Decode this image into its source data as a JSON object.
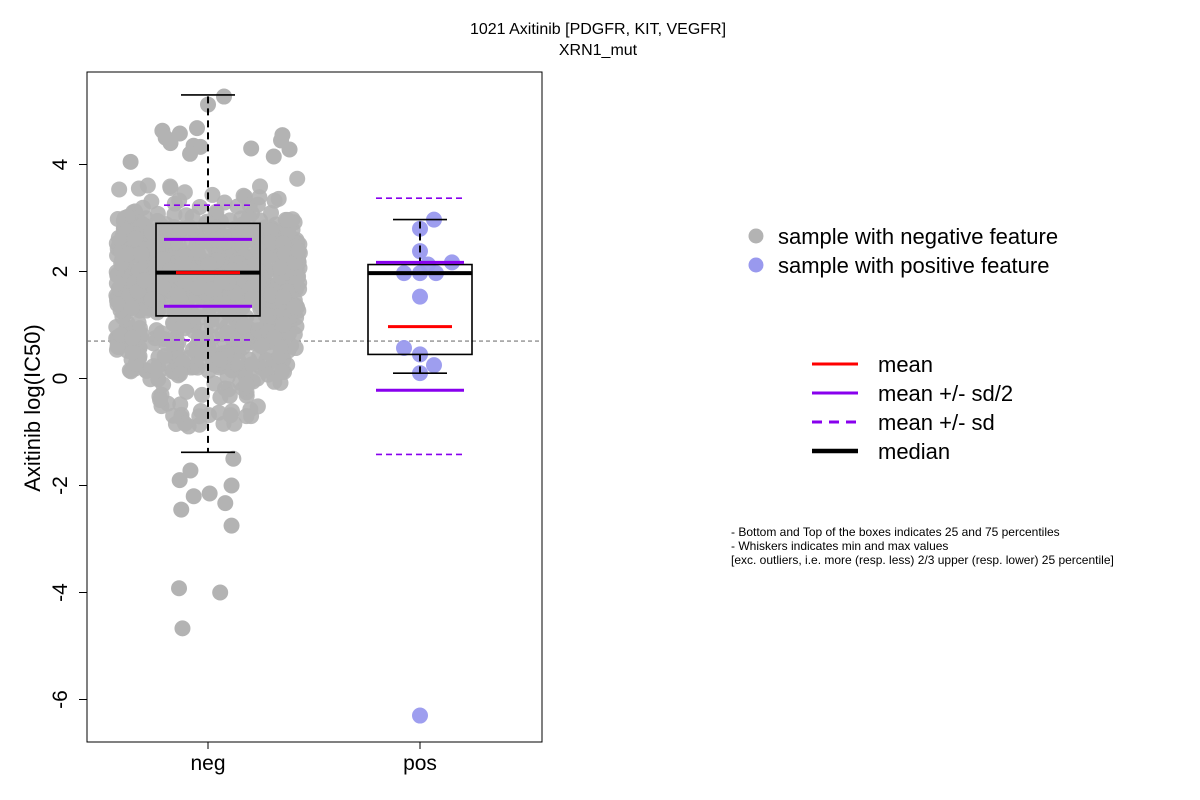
{
  "chart_data": {
    "type": "boxplot",
    "title": "1021 Axitinib [PDGFR, KIT, VEGFR]",
    "subtitle": "XRN1_mut",
    "ylabel": "Axitinib log(IC50)",
    "xlabel": "",
    "ylim": [
      -6.8,
      5.7
    ],
    "yticks": [
      -6,
      -4,
      -2,
      0,
      2,
      4
    ],
    "reference_line": 0.7,
    "categories": [
      "neg",
      "pos"
    ],
    "groups": [
      {
        "name": "neg",
        "color": "#b3b3b3",
        "n_points": 900,
        "whisker_low": -1.38,
        "q1": 1.17,
        "median": 1.98,
        "q3": 2.9,
        "whisker_high": 5.3,
        "mean": 1.98,
        "mean_minus_half_sd": 1.35,
        "mean_plus_half_sd": 2.6,
        "mean_minus_sd": 0.72,
        "mean_plus_sd": 3.24,
        "outliers": [
          -1.5,
          -1.72,
          -1.9,
          -2.0,
          -2.15,
          -2.2,
          -2.33,
          -2.45,
          -2.75,
          -3.92,
          -4.0,
          -4.67
        ],
        "top_points": [
          5.27,
          5.12,
          4.68,
          4.63,
          4.58,
          4.55,
          4.5,
          4.45,
          4.4,
          4.35,
          4.33,
          4.3,
          4.28,
          4.2,
          4.15,
          4.05
        ]
      },
      {
        "name": "pos",
        "color": "#9999ee",
        "whisker_low": 0.1,
        "q1": 0.45,
        "median": 1.97,
        "q3": 2.13,
        "whisker_high": 2.97,
        "mean": 0.97,
        "mean_minus_half_sd": -0.22,
        "mean_plus_half_sd": 2.17,
        "mean_minus_sd": -1.42,
        "mean_plus_sd": 3.37,
        "points": [
          2.97,
          2.8,
          2.38,
          2.17,
          2.13,
          1.97,
          1.97,
          1.97,
          1.53,
          0.57,
          0.45,
          0.25,
          0.1,
          -6.3
        ]
      }
    ],
    "legend_points": [
      {
        "label": "sample with negative feature",
        "color": "#b3b3b3"
      },
      {
        "label": "sample with positive feature",
        "color": "#9999ee"
      }
    ],
    "legend_lines": [
      {
        "label": "mean",
        "color": "#ff0000",
        "style": "solid"
      },
      {
        "label": "mean +/- sd/2",
        "color": "#8800ee",
        "style": "solid"
      },
      {
        "label": "mean +/- sd",
        "color": "#8800ee",
        "style": "dashed"
      },
      {
        "label": "median",
        "color": "#000000",
        "style": "thick"
      }
    ],
    "notes": [
      "- Bottom and Top of the boxes indicates 25 and 75 percentiles",
      "- Whiskers indicates min and max values",
      "[exc. outliers, i.e. more (resp. less) 2/3 upper (resp. lower) 25 percentile]"
    ],
    "grid": false
  }
}
